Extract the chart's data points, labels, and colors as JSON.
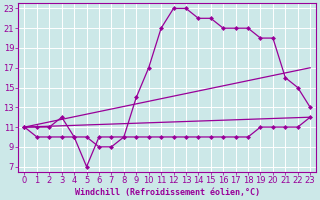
{
  "xlabel": "Windchill (Refroidissement éolien,°C)",
  "bg_color": "#cce8e8",
  "grid_color": "#ffffff",
  "line_color": "#990099",
  "xlim": [
    -0.5,
    23.5
  ],
  "ylim": [
    6.5,
    23.5
  ],
  "xticks": [
    0,
    1,
    2,
    3,
    4,
    5,
    6,
    7,
    8,
    9,
    10,
    11,
    12,
    13,
    14,
    15,
    16,
    17,
    18,
    19,
    20,
    21,
    22,
    23
  ],
  "yticks": [
    7,
    9,
    11,
    13,
    15,
    17,
    19,
    21,
    23
  ],
  "line1_x": [
    0,
    1,
    2,
    3,
    4,
    5,
    6,
    7,
    8,
    9,
    10,
    11,
    12,
    13,
    14,
    15,
    16,
    17,
    18,
    19,
    20,
    21,
    22,
    23
  ],
  "line1_y": [
    11,
    11,
    11,
    12,
    10,
    10,
    9,
    9,
    10,
    14,
    17,
    21,
    23,
    23,
    22,
    22,
    21,
    21,
    21,
    20,
    20,
    16,
    15,
    13
  ],
  "line2_x": [
    0,
    1,
    2,
    3,
    4,
    5,
    6,
    7,
    8,
    9,
    10,
    11,
    12,
    13,
    14,
    15,
    16,
    17,
    18,
    19,
    20,
    21,
    22,
    23
  ],
  "line2_y": [
    11,
    10,
    10,
    10,
    10,
    7,
    10,
    10,
    10,
    10,
    10,
    10,
    10,
    10,
    10,
    10,
    10,
    10,
    10,
    11,
    11,
    11,
    11,
    12
  ],
  "line3_x": [
    0,
    23
  ],
  "line3_y": [
    11,
    17
  ],
  "line4_x": [
    0,
    23
  ],
  "line4_y": [
    11,
    12
  ],
  "xlabel_fontsize": 6,
  "tick_fontsize": 6
}
